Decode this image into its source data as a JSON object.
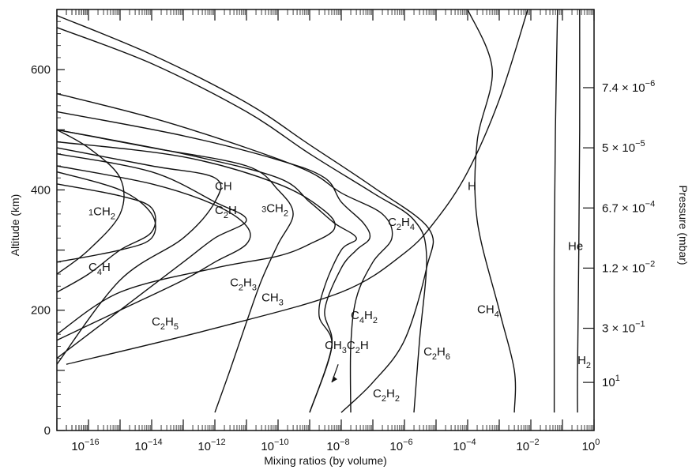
{
  "chart_data": {
    "type": "line",
    "xlabel": "Mixing ratios (by volume)",
    "ylabel": "Altitude (km)",
    "y2label": "Pressure (mbar)",
    "xscale": "log",
    "xlim": [
      1e-17,
      1
    ],
    "ylim": [
      0,
      700
    ],
    "x_ticks": [
      {
        "base": "10",
        "exp": "−16",
        "value": 1e-16
      },
      {
        "base": "10",
        "exp": "−14",
        "value": 1e-14
      },
      {
        "base": "10",
        "exp": "−12",
        "value": 1e-12
      },
      {
        "base": "10",
        "exp": "−10",
        "value": 1e-10
      },
      {
        "base": "10",
        "exp": "−8",
        "value": 1e-08
      },
      {
        "base": "10",
        "exp": "−6",
        "value": 1e-06
      },
      {
        "base": "10",
        "exp": "−4",
        "value": 0.0001
      },
      {
        "base": "10",
        "exp": "−2",
        "value": 0.01
      },
      {
        "base": "10",
        "exp": "0",
        "value": 1
      }
    ],
    "y_ticks": [
      0,
      200,
      400,
      600
    ],
    "y2_ticks": [
      {
        "mantissa": "7.4 × 10",
        "exp": "−6",
        "altitude": 570
      },
      {
        "mantissa": "5 × 10",
        "exp": "−5",
        "altitude": 470
      },
      {
        "mantissa": "6.7 × 10",
        "exp": "−4",
        "altitude": 370
      },
      {
        "mantissa": "1.2 × 10",
        "exp": "−2",
        "altitude": 270
      },
      {
        "mantissa": "3 × 10",
        "exp": "−1",
        "altitude": 170
      },
      {
        "mantissa": "10",
        "exp": "1",
        "altitude": 80
      }
    ],
    "series": [
      {
        "name": "H2",
        "label_at": [
          0.3,
          110
        ],
        "points": [
          [
            0.35,
            700
          ],
          [
            0.35,
            500
          ],
          [
            0.33,
            300
          ],
          [
            0.3,
            100
          ],
          [
            0.3,
            30
          ]
        ]
      },
      {
        "name": "He",
        "label_at": [
          0.15,
          300
        ],
        "points": [
          [
            0.07,
            700
          ],
          [
            0.06,
            500
          ],
          [
            0.055,
            300
          ],
          [
            0.055,
            100
          ],
          [
            0.055,
            30
          ]
        ]
      },
      {
        "name": "H",
        "label_at": [
          0.0001,
          400
        ],
        "points": [
          [
            2e-17,
            110
          ],
          [
            1e-12,
            170
          ],
          [
            1e-08,
            230
          ],
          [
            1e-06,
            295
          ],
          [
            1e-05,
            350
          ],
          [
            0.0001,
            430
          ],
          [
            0.001,
            550
          ],
          [
            0.008,
            700
          ]
        ]
      },
      {
        "name": "CH4",
        "label_at": [
          0.0002,
          195
        ],
        "points": [
          [
            0.0001,
            700
          ],
          [
            0.0006,
            600
          ],
          [
            0.0002,
            480
          ],
          [
            0.0002,
            350
          ],
          [
            0.001,
            200
          ],
          [
            0.003,
            100
          ],
          [
            0.003,
            30
          ]
        ]
      },
      {
        "name": "C2H6",
        "label_at": [
          4e-06,
          125
        ],
        "points": [
          [
            1e-17,
            670
          ],
          [
            1e-14,
            610
          ],
          [
            1e-11,
            530
          ],
          [
            1e-09,
            460
          ],
          [
            1e-07,
            395
          ],
          [
            2e-06,
            350
          ],
          [
            5e-06,
            290
          ],
          [
            3e-06,
            150
          ],
          [
            2e-06,
            30
          ]
        ]
      },
      {
        "name": "C2H2",
        "label_at": [
          1e-07,
          55
        ],
        "points": [
          [
            1e-17,
            690
          ],
          [
            1e-14,
            625
          ],
          [
            1e-11,
            545
          ],
          [
            1e-09,
            475
          ],
          [
            1e-07,
            405
          ],
          [
            6e-06,
            335
          ],
          [
            5e-06,
            270
          ],
          [
            1e-06,
            150
          ],
          [
            1e-07,
            80
          ],
          [
            1e-08,
            30
          ]
        ]
      },
      {
        "name": "C2H4",
        "label_at": [
          3e-07,
          340
        ],
        "points": [
          [
            1e-17,
            560
          ],
          [
            1e-14,
            520
          ],
          [
            1e-11,
            470
          ],
          [
            1e-09,
            430
          ],
          [
            1e-08,
            395
          ],
          [
            2e-07,
            360
          ],
          [
            4e-07,
            320
          ],
          [
            1e-07,
            280
          ],
          [
            3e-08,
            220
          ],
          [
            2e-08,
            140
          ],
          [
            2e-08,
            30
          ]
        ]
      },
      {
        "name": "C4H2",
        "label_at": [
          2e-08,
          185
        ],
        "points": [
          [
            1e-17,
            530
          ],
          [
            1e-13,
            490
          ],
          [
            1e-10,
            450
          ],
          [
            3e-09,
            420
          ],
          [
            1e-08,
            380
          ],
          [
            5e-08,
            345
          ],
          [
            8e-08,
            320
          ],
          [
            3e-08,
            300
          ],
          [
            1e-08,
            270
          ],
          [
            3e-09,
            200
          ],
          [
            5e-09,
            140
          ],
          [
            1e-09,
            30
          ]
        ]
      },
      {
        "name": "CH3C2H",
        "label_at": [
          3e-09,
          135
        ],
        "points": [
          [
            1e-17,
            500
          ],
          [
            1e-13,
            460
          ],
          [
            1e-10,
            420
          ],
          [
            1e-09,
            380
          ],
          [
            6e-09,
            345
          ],
          [
            3e-08,
            320
          ],
          [
            1e-08,
            300
          ],
          [
            3e-09,
            240
          ],
          [
            2e-09,
            190
          ],
          [
            5e-09,
            140
          ],
          [
            1e-09,
            30
          ]
        ]
      },
      {
        "name": "CH3",
        "label_at": [
          3e-11,
          215
        ],
        "points": [
          [
            1e-17,
            500
          ],
          [
            1e-14,
            470
          ],
          [
            1e-11,
            440
          ],
          [
            1e-10,
            400
          ],
          [
            3e-10,
            360
          ],
          [
            1e-10,
            310
          ],
          [
            3e-11,
            250
          ],
          [
            1e-11,
            180
          ],
          [
            3e-12,
            100
          ],
          [
            1e-12,
            30
          ]
        ]
      },
      {
        "name": "3CH2",
        "label_at": [
          3e-11,
          355
        ],
        "points": [
          [
            1e-17,
            480
          ],
          [
            1e-13,
            455
          ],
          [
            1e-10,
            410
          ],
          [
            3e-09,
            365
          ],
          [
            6e-09,
            335
          ],
          [
            1e-09,
            310
          ],
          [
            1e-10,
            290
          ],
          [
            1e-12,
            270
          ],
          [
            1e-15,
            230
          ],
          [
            1e-17,
            160
          ]
        ]
      },
      {
        "name": "C2H3",
        "label_at": [
          3e-12,
          240
        ],
        "points": [
          [
            1e-17,
            440
          ],
          [
            1e-14,
            410
          ],
          [
            1e-12,
            375
          ],
          [
            1e-11,
            340
          ],
          [
            1e-11,
            310
          ],
          [
            1e-12,
            280
          ],
          [
            1e-13,
            250
          ],
          [
            1e-15,
            200
          ],
          [
            1e-17,
            150
          ]
        ]
      },
      {
        "name": "C2H",
        "label_at": [
          1e-12,
          360
        ],
        "points": [
          [
            1e-17,
            460
          ],
          [
            1e-14,
            430
          ],
          [
            1e-12,
            380
          ],
          [
            1e-11,
            350
          ],
          [
            1e-12,
            320
          ],
          [
            1e-13,
            280
          ],
          [
            1e-15,
            200
          ],
          [
            1e-17,
            120
          ]
        ]
      },
      {
        "name": "CH",
        "label_at": [
          1e-12,
          400
        ],
        "points": [
          [
            1e-17,
            470
          ],
          [
            1e-14,
            440
          ],
          [
            1e-12,
            420
          ],
          [
            1e-12,
            380
          ],
          [
            1e-13,
            320
          ],
          [
            1e-15,
            250
          ],
          [
            1e-17,
            110
          ]
        ]
      },
      {
        "name": "1CH2",
        "label_at": [
          1e-16,
          350
        ],
        "points": [
          [
            1e-17,
            430
          ],
          [
            1e-15,
            400
          ],
          [
            1e-14,
            360
          ],
          [
            1e-14,
            320
          ],
          [
            1e-15,
            300
          ],
          [
            1e-17,
            280
          ]
        ]
      },
      {
        "name": "C2H5",
        "label_at": [
          1e-14,
          175
        ],
        "points": [
          [
            1e-17,
            410
          ],
          [
            1e-15,
            390
          ],
          [
            1e-14,
            370
          ],
          [
            1e-14,
            330
          ],
          [
            1e-15,
            300
          ],
          [
            1e-16,
            260
          ],
          [
            1e-17,
            230
          ]
        ]
      },
      {
        "name": "C4H",
        "label_at": [
          1e-16,
          265
        ],
        "points": [
          [
            1e-17,
            500
          ],
          [
            1e-16,
            470
          ],
          [
            1e-15,
            420
          ],
          [
            1e-15,
            360
          ],
          [
            1e-16,
            300
          ],
          [
            1e-17,
            260
          ]
        ]
      }
    ]
  }
}
